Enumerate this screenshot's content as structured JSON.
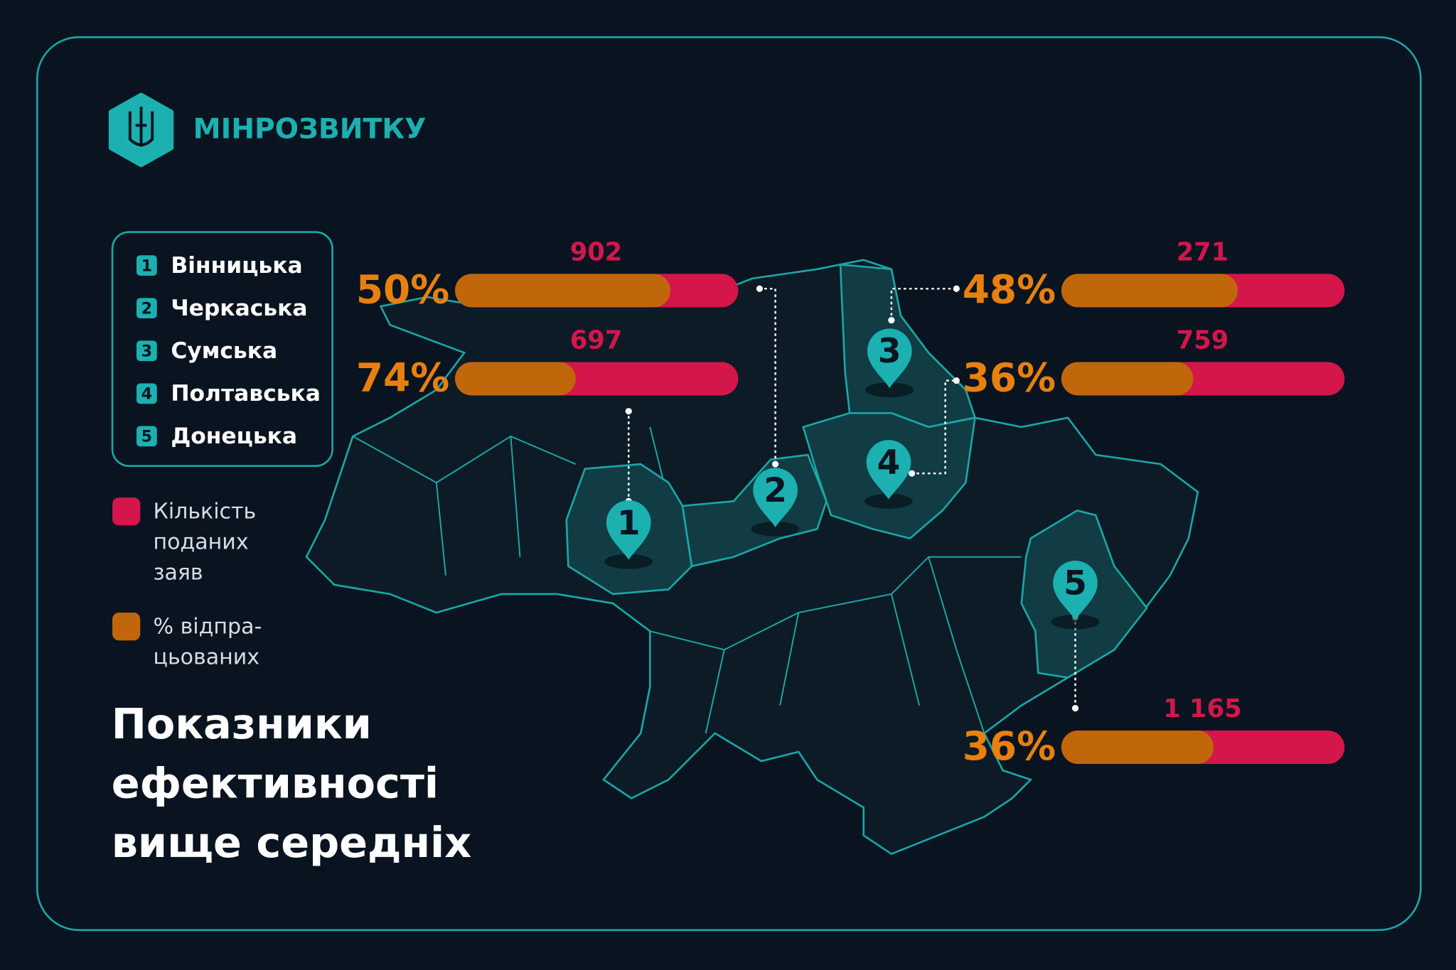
{
  "logo": {
    "text": "МІНРОЗВИТКУ"
  },
  "regions": [
    {
      "number": "1",
      "name": "Вінницька"
    },
    {
      "number": "2",
      "name": "Черкаська"
    },
    {
      "number": "3",
      "name": "Сумська"
    },
    {
      "number": "4",
      "name": "Полтавська"
    },
    {
      "number": "5",
      "name": "Донецька"
    }
  ],
  "legend": [
    {
      "lines": [
        "Кількість",
        "поданих",
        "заяв"
      ]
    },
    {
      "lines": [
        "% відпра-",
        "цьованих"
      ]
    }
  ],
  "title": {
    "lines": [
      "Показники",
      "ефективності",
      "вище середніх"
    ]
  },
  "bars": [
    {
      "percent": "50%",
      "count": "902"
    },
    {
      "percent": "74%",
      "count": "697"
    },
    {
      "percent": "48%",
      "count": "271"
    },
    {
      "percent": "36%",
      "count": "759"
    },
    {
      "percent": "36%",
      "count": "1 165"
    }
  ]
}
